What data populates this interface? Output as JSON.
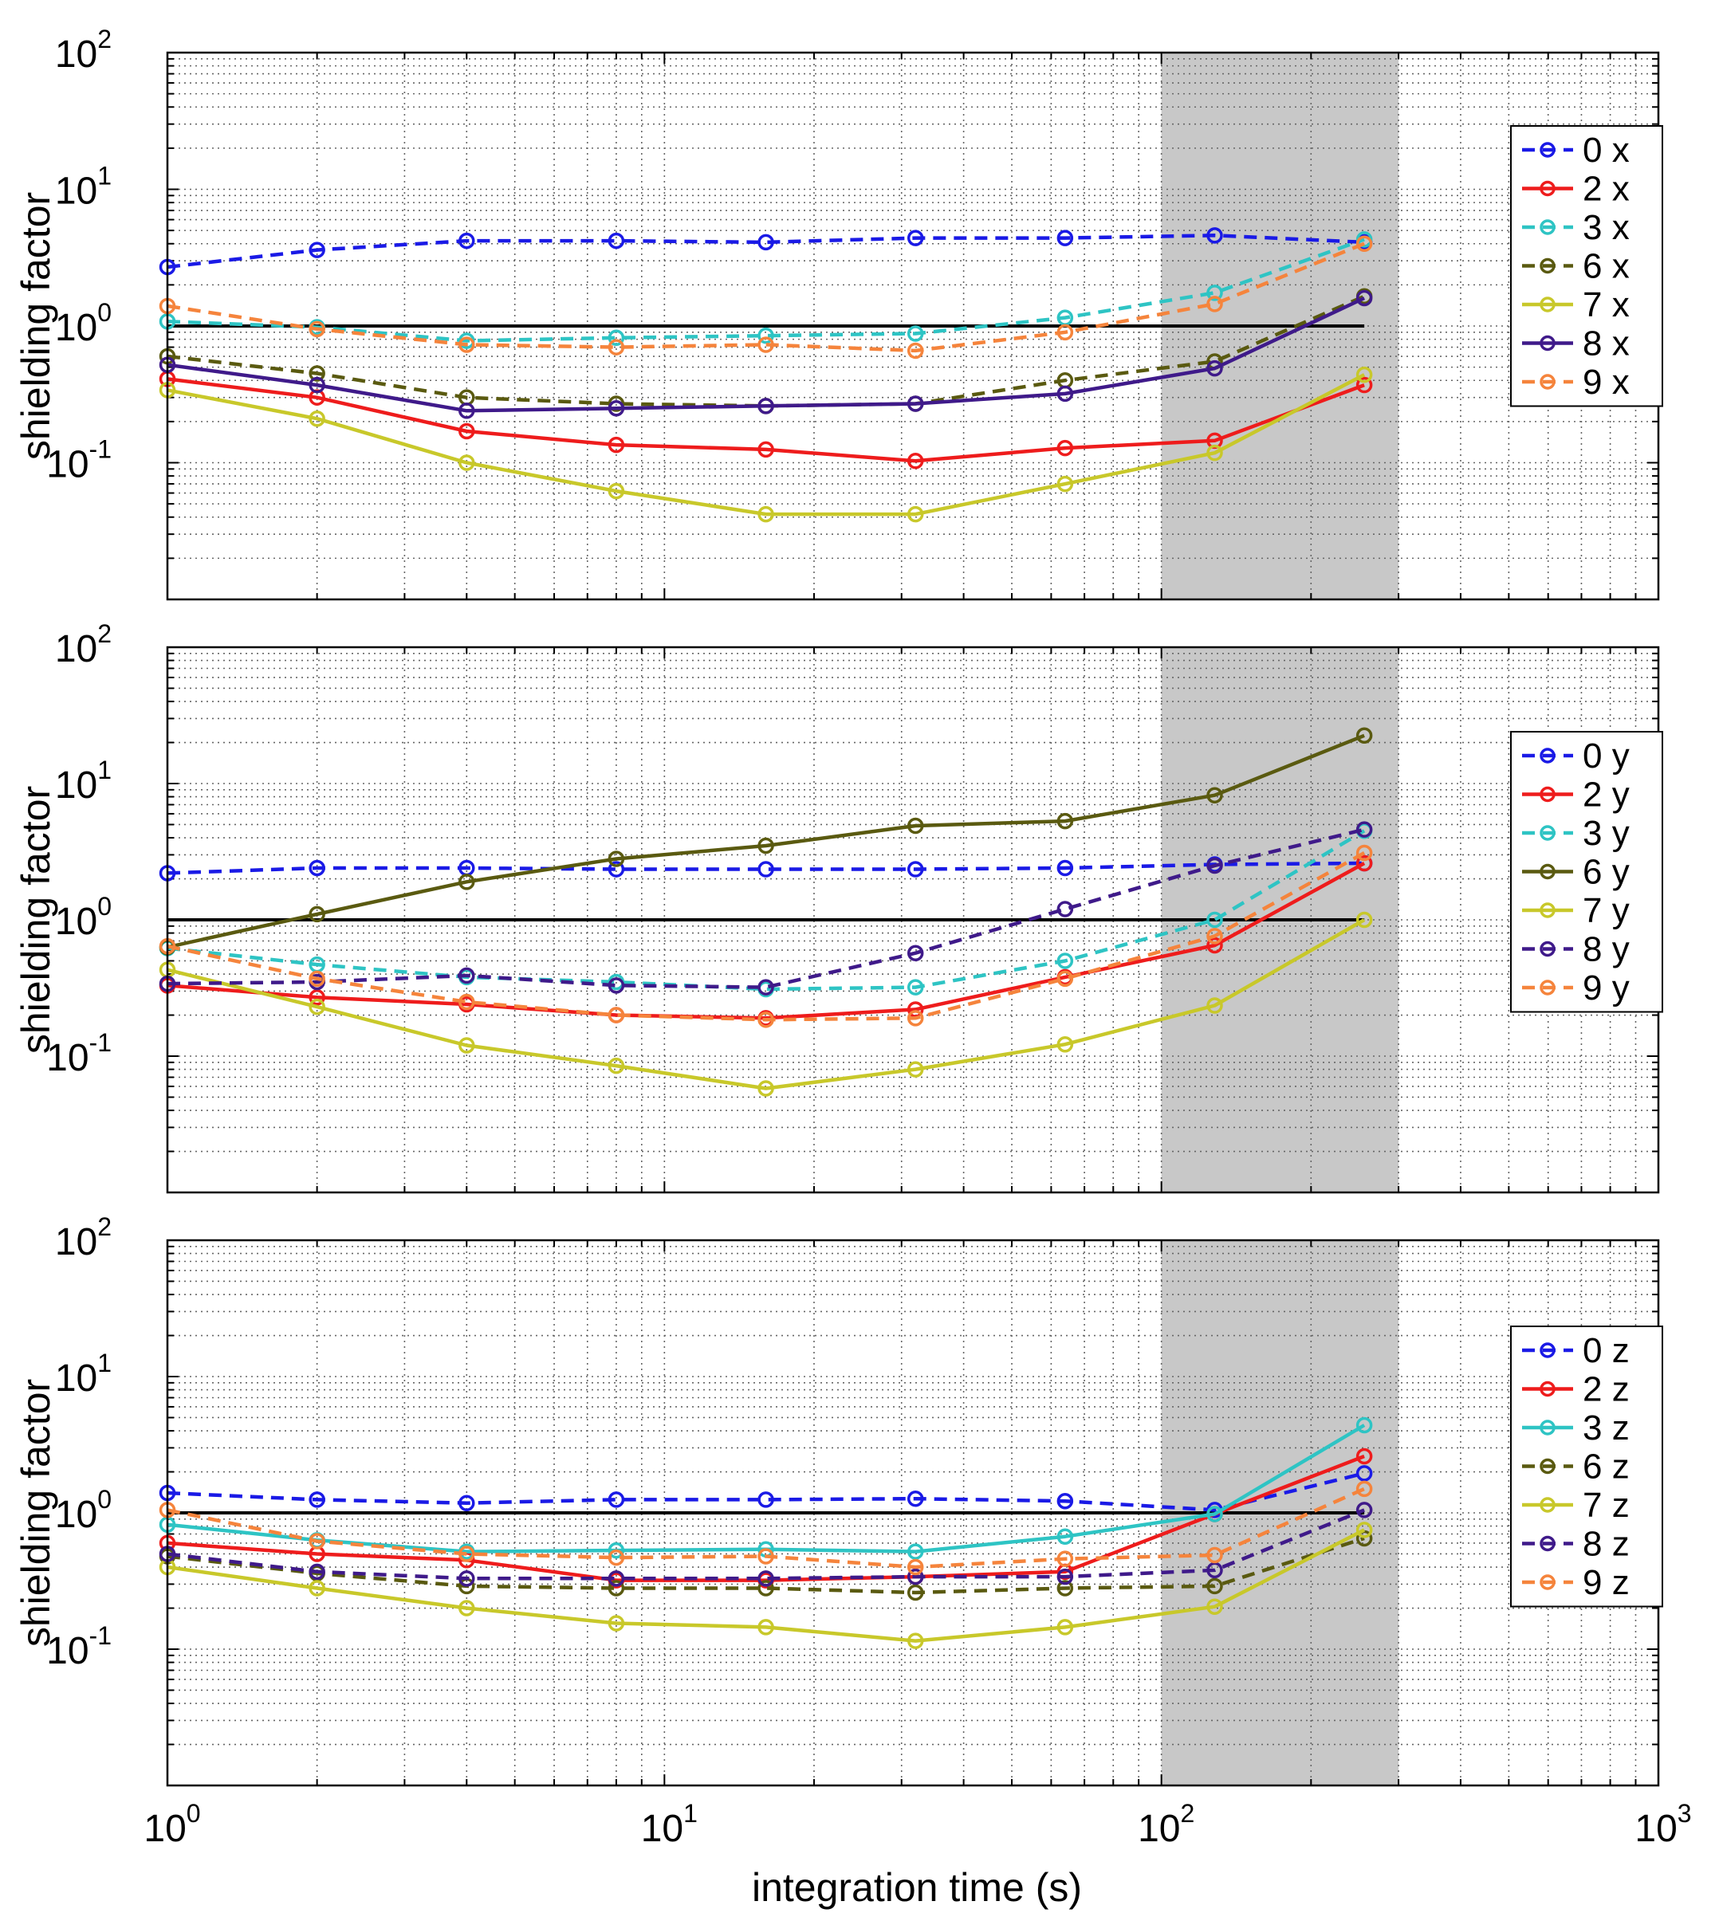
{
  "chart_data": [
    {
      "type": "line",
      "xscale": "log",
      "yscale": "log",
      "xlim": [
        1,
        1000
      ],
      "ylim": [
        0.01,
        100
      ],
      "xlabel": "integration time (s)",
      "ylabel": "shielding factor",
      "xticklabels": [
        "10",
        "10",
        "10",
        "10"
      ],
      "xtickexps": [
        "0",
        "1",
        "2",
        "3"
      ],
      "yticklabels": [
        "10",
        "10",
        "10",
        "10"
      ],
      "ytickexps": [
        "-1",
        "0",
        "1",
        "2"
      ],
      "grid": true,
      "reference_line": 1,
      "shaded_region": [
        100,
        300
      ],
      "x": [
        1,
        2,
        4,
        8,
        16,
        32,
        64,
        128,
        256
      ],
      "legend_position": "right",
      "series": [
        {
          "name": "0 x",
          "color": "#1a1ae6",
          "style": "dashed",
          "values": [
            2.7,
            3.6,
            4.2,
            4.2,
            4.1,
            4.4,
            4.4,
            4.6,
            4.1
          ]
        },
        {
          "name": "2 x",
          "color": "#ee1c1c",
          "style": "solid",
          "values": [
            0.41,
            0.3,
            0.17,
            0.135,
            0.125,
            0.103,
            0.128,
            0.145,
            0.37
          ]
        },
        {
          "name": "3 x",
          "color": "#2ec4c4",
          "style": "dashed",
          "values": [
            1.08,
            0.98,
            0.78,
            0.82,
            0.85,
            0.88,
            1.15,
            1.75,
            4.3
          ]
        },
        {
          "name": "6 x",
          "color": "#5a5a10",
          "style": "dashed",
          "values": [
            0.6,
            0.45,
            0.3,
            0.27,
            0.26,
            0.27,
            0.4,
            0.55,
            1.65
          ]
        },
        {
          "name": "7 x",
          "color": "#c8c82a",
          "style": "solid",
          "values": [
            0.34,
            0.21,
            0.1,
            0.062,
            0.042,
            0.042,
            0.07,
            0.118,
            0.44
          ]
        },
        {
          "name": "8 x",
          "color": "#3f1a8a",
          "style": "solid",
          "values": [
            0.52,
            0.37,
            0.24,
            0.25,
            0.26,
            0.27,
            0.32,
            0.49,
            1.6
          ]
        },
        {
          "name": "9 x",
          "color": "#f5843c",
          "style": "dashed",
          "values": [
            1.4,
            0.95,
            0.73,
            0.7,
            0.73,
            0.66,
            0.9,
            1.45,
            4.0
          ]
        }
      ]
    },
    {
      "type": "line",
      "xscale": "log",
      "yscale": "log",
      "xlim": [
        1,
        1000
      ],
      "ylim": [
        0.01,
        100
      ],
      "xlabel": "",
      "ylabel": "shielding factor",
      "yticklabels": [
        "10",
        "10",
        "10",
        "10"
      ],
      "ytickexps": [
        "-1",
        "0",
        "1",
        "2"
      ],
      "grid": true,
      "reference_line": 1,
      "shaded_region": [
        100,
        300
      ],
      "x": [
        1,
        2,
        4,
        8,
        16,
        32,
        64,
        128,
        256
      ],
      "legend_position": "right",
      "series": [
        {
          "name": "0 y",
          "color": "#1a1ae6",
          "style": "dashed",
          "values": [
            2.2,
            2.4,
            2.4,
            2.35,
            2.35,
            2.35,
            2.4,
            2.55,
            2.6
          ]
        },
        {
          "name": "2 y",
          "color": "#ee1c1c",
          "style": "solid",
          "values": [
            0.33,
            0.27,
            0.24,
            0.2,
            0.19,
            0.22,
            0.38,
            0.65,
            2.6
          ]
        },
        {
          "name": "3 y",
          "color": "#2ec4c4",
          "style": "dashed",
          "values": [
            0.62,
            0.47,
            0.38,
            0.35,
            0.31,
            0.32,
            0.5,
            1.0,
            4.5
          ]
        },
        {
          "name": "6 y",
          "color": "#5a5a10",
          "style": "solid",
          "values": [
            0.63,
            1.1,
            1.9,
            2.8,
            3.5,
            4.9,
            5.3,
            8.2,
            22.5
          ]
        },
        {
          "name": "7 y",
          "color": "#c8c82a",
          "style": "solid",
          "values": [
            0.43,
            0.23,
            0.12,
            0.085,
            0.058,
            0.08,
            0.122,
            0.235,
            1.0
          ]
        },
        {
          "name": "8 y",
          "color": "#3f1a8a",
          "style": "dashed",
          "values": [
            0.34,
            0.35,
            0.39,
            0.33,
            0.32,
            0.57,
            1.2,
            2.5,
            4.6
          ]
        },
        {
          "name": "9 y",
          "color": "#f5843c",
          "style": "dashed",
          "values": [
            0.64,
            0.37,
            0.25,
            0.2,
            0.185,
            0.19,
            0.37,
            0.76,
            3.1
          ]
        }
      ]
    },
    {
      "type": "line",
      "xscale": "log",
      "yscale": "log",
      "xlim": [
        1,
        1000
      ],
      "ylim": [
        0.01,
        100
      ],
      "xlabel": "integration time (s)",
      "ylabel": "shielding factor",
      "xticklabels": [
        "10",
        "10",
        "10",
        "10"
      ],
      "xtickexps": [
        "0",
        "1",
        "2",
        "3"
      ],
      "yticklabels": [
        "10",
        "10",
        "10",
        "10"
      ],
      "ytickexps": [
        "-1",
        "0",
        "1",
        "2"
      ],
      "grid": true,
      "reference_line": 1,
      "shaded_region": [
        100,
        300
      ],
      "x": [
        1,
        2,
        4,
        8,
        16,
        32,
        64,
        128,
        256
      ],
      "legend_position": "right",
      "series": [
        {
          "name": "0 z",
          "color": "#1a1ae6",
          "style": "dashed",
          "values": [
            1.4,
            1.25,
            1.18,
            1.25,
            1.25,
            1.27,
            1.22,
            1.05,
            1.95
          ]
        },
        {
          "name": "2 z",
          "color": "#ee1c1c",
          "style": "solid",
          "values": [
            0.6,
            0.5,
            0.45,
            0.32,
            0.32,
            0.34,
            0.37,
            0.98,
            2.6
          ]
        },
        {
          "name": "3 z",
          "color": "#2ec4c4",
          "style": "solid",
          "values": [
            0.82,
            0.63,
            0.52,
            0.53,
            0.54,
            0.52,
            0.67,
            0.98,
            4.4
          ]
        },
        {
          "name": "6 z",
          "color": "#5a5a10",
          "style": "dashed",
          "values": [
            0.48,
            0.36,
            0.29,
            0.28,
            0.28,
            0.26,
            0.28,
            0.29,
            0.65
          ]
        },
        {
          "name": "7 z",
          "color": "#c8c82a",
          "style": "solid",
          "values": [
            0.4,
            0.28,
            0.2,
            0.155,
            0.145,
            0.115,
            0.145,
            0.205,
            0.75
          ]
        },
        {
          "name": "8 z",
          "color": "#3f1a8a",
          "style": "dashed",
          "values": [
            0.5,
            0.37,
            0.33,
            0.33,
            0.33,
            0.34,
            0.34,
            0.38,
            1.05
          ]
        },
        {
          "name": "9 z",
          "color": "#f5843c",
          "style": "dashed",
          "values": [
            1.05,
            0.62,
            0.5,
            0.47,
            0.48,
            0.4,
            0.46,
            0.49,
            1.5
          ]
        }
      ]
    }
  ]
}
